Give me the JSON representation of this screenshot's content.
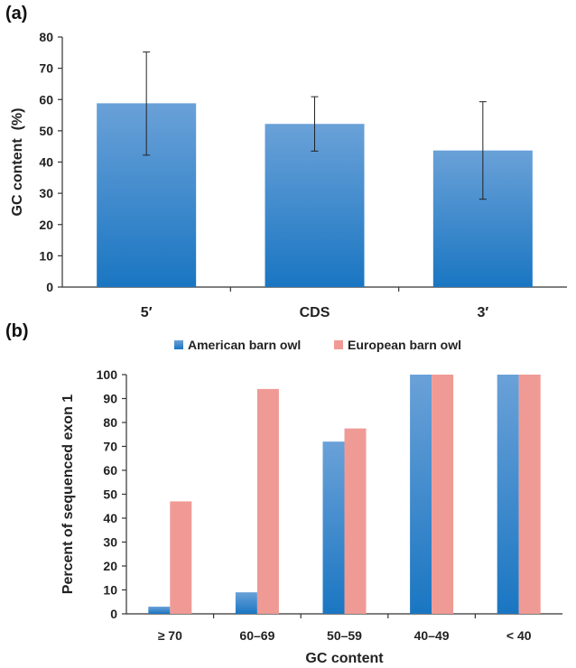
{
  "panel_labels": {
    "a": "(a)",
    "b": "(b)"
  },
  "colors": {
    "blue_top": "#6aa1d8",
    "blue_bottom": "#1a76c2",
    "pink": "#f09a95",
    "axis": "#333333"
  },
  "chart_data": [
    {
      "type": "bar",
      "panel": "(a)",
      "title": "",
      "categories": [
        "5′",
        "CDS",
        "3′"
      ],
      "values": [
        58.8,
        52.2,
        43.7
      ],
      "error_low": [
        42.2,
        43.5,
        28.1
      ],
      "error_high": [
        75.2,
        60.9,
        59.3
      ],
      "xlabel": "",
      "ylabel": "GC content  (%)",
      "ylim": [
        0,
        80
      ],
      "yticks": [
        "0",
        "10",
        "20",
        "30",
        "40",
        "50",
        "60",
        "70",
        "80"
      ],
      "grid": false,
      "legend": "none"
    },
    {
      "type": "bar",
      "panel": "(b)",
      "title": "",
      "categories": [
        "≥ 70",
        "60–69",
        "50–59",
        "40–49",
        "< 40"
      ],
      "series": [
        {
          "name": "American barn owl",
          "values": [
            3,
            9,
            72,
            100,
            100
          ]
        },
        {
          "name": "European barn owl",
          "values": [
            47,
            94,
            77.5,
            100,
            100
          ]
        }
      ],
      "xlabel": "GC content",
      "ylabel": "Percent of sequenced exon 1",
      "ylim": [
        0,
        100
      ],
      "yticks": [
        "0",
        "10",
        "20",
        "30",
        "40",
        "50",
        "60",
        "70",
        "80",
        "90",
        "100"
      ],
      "grid": false,
      "legend": "top"
    }
  ]
}
